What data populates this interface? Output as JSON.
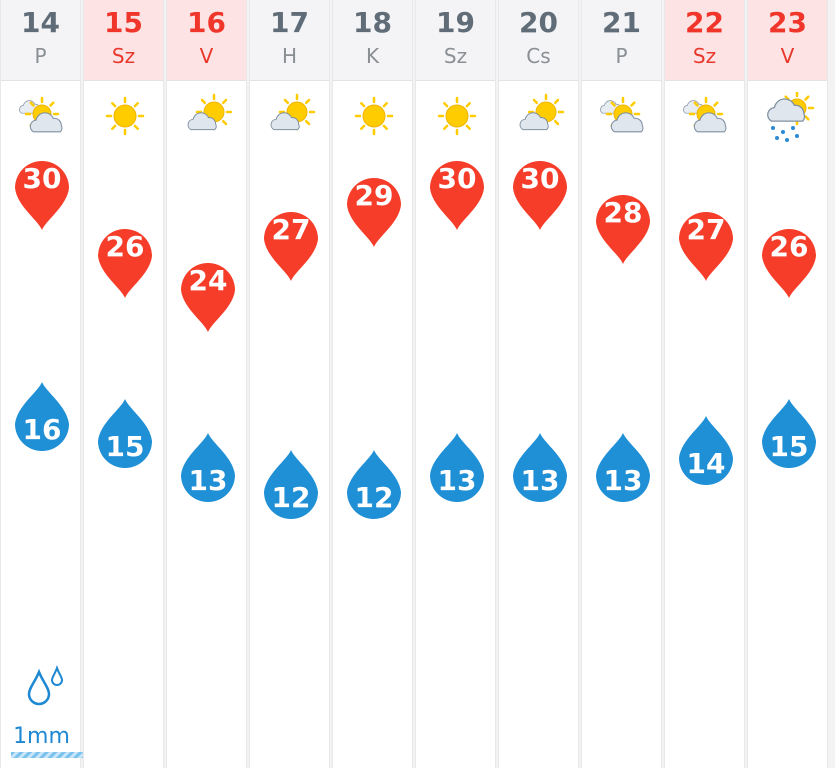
{
  "colors": {
    "max_marker": "#f63d2a",
    "min_marker": "#1f8fd6",
    "weekend_header": "#fde3e3",
    "weekday_header": "#f4f4f6",
    "weekend_text": "#f0362a",
    "weekday_text": "#606d78"
  },
  "days": [
    {
      "date": "14",
      "dow": "P",
      "icon": "partly-cloudy-icon",
      "max": "30",
      "min": "16",
      "weekend": false,
      "precip": "1mm"
    },
    {
      "date": "15",
      "dow": "Sz",
      "icon": "sun-icon",
      "max": "26",
      "min": "15",
      "weekend": true
    },
    {
      "date": "16",
      "dow": "V",
      "icon": "sun-cloud-icon",
      "max": "24",
      "min": "13",
      "weekend": true
    },
    {
      "date": "17",
      "dow": "H",
      "icon": "sun-cloud-icon",
      "max": "27",
      "min": "12",
      "weekend": false
    },
    {
      "date": "18",
      "dow": "K",
      "icon": "sun-icon",
      "max": "29",
      "min": "12",
      "weekend": false
    },
    {
      "date": "19",
      "dow": "Sz",
      "icon": "sun-icon",
      "max": "30",
      "min": "13",
      "weekend": false
    },
    {
      "date": "20",
      "dow": "Cs",
      "icon": "sun-cloud-icon",
      "max": "30",
      "min": "13",
      "weekend": false
    },
    {
      "date": "21",
      "dow": "P",
      "icon": "partly-cloudy-icon",
      "max": "28",
      "min": "13",
      "weekend": false
    },
    {
      "date": "22",
      "dow": "Sz",
      "icon": "partly-cloudy-icon",
      "max": "27",
      "min": "14",
      "weekend": true
    },
    {
      "date": "23",
      "dow": "V",
      "icon": "rain-cloud-icon",
      "max": "26",
      "min": "15",
      "weekend": true
    }
  ]
}
